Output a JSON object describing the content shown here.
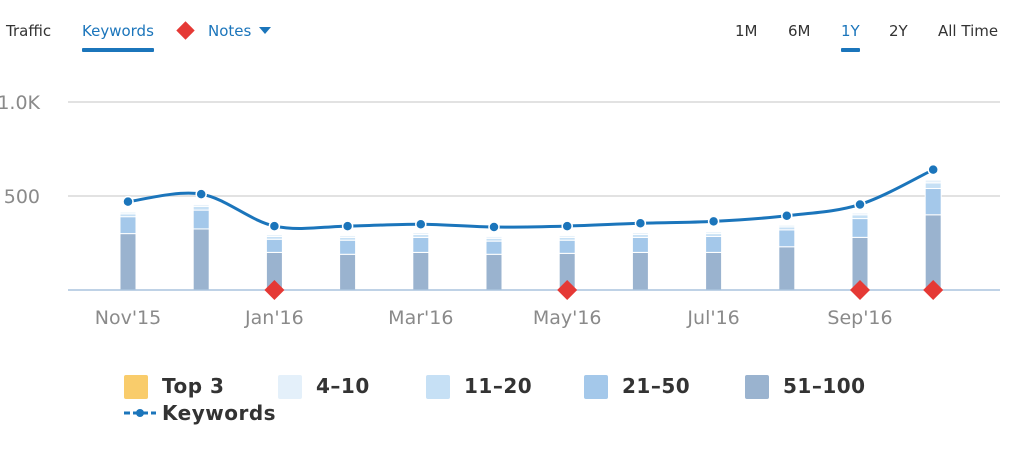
{
  "tabs": {
    "traffic": "Traffic",
    "keywords": "Keywords",
    "notes": "Notes"
  },
  "ranges": {
    "r1m": "1M",
    "r6m": "6M",
    "r1y": "1Y",
    "r2y": "2Y",
    "all": "All Time",
    "selected": "1Y"
  },
  "colors": {
    "accent": "#1b75bb",
    "note_marker": "#e53935",
    "top3": "#f9cc6b",
    "pos_4_10": "#e4f0fa",
    "pos_11_20": "#c6e0f5",
    "pos_21_50": "#a4c8ea",
    "pos_51_100": "#9ab3cf"
  },
  "legend": {
    "top3": "Top 3",
    "pos_4_10": "4–10",
    "pos_11_20": "11–20",
    "pos_21_50": "21–50",
    "pos_51_100": "51–100",
    "keywords": "Keywords"
  },
  "chart_data": {
    "type": "bar",
    "stacked": true,
    "x_tick_labels": [
      "Nov'15",
      "Jan'16",
      "Mar'16",
      "May'16",
      "Jul'16",
      "Sep'16"
    ],
    "y_tick_labels": [
      "1.0K",
      "500"
    ],
    "ylim": [
      0,
      1000
    ],
    "grid": true,
    "points": [
      {
        "top3": 0,
        "p4_10": 10,
        "p11_20": 15,
        "p21_50": 90,
        "p51_100": 300,
        "keywords": 470,
        "note": false
      },
      {
        "top3": 0,
        "p4_10": 10,
        "p11_20": 20,
        "p21_50": 100,
        "p51_100": 325,
        "keywords": 510,
        "note": false
      },
      {
        "top3": 0,
        "p4_10": 10,
        "p11_20": 15,
        "p21_50": 70,
        "p51_100": 200,
        "keywords": 340,
        "note": true
      },
      {
        "top3": 0,
        "p4_10": 10,
        "p11_20": 15,
        "p21_50": 75,
        "p51_100": 190,
        "keywords": 340,
        "note": false
      },
      {
        "top3": 0,
        "p4_10": 10,
        "p11_20": 15,
        "p21_50": 80,
        "p51_100": 200,
        "keywords": 350,
        "note": false
      },
      {
        "top3": 0,
        "p4_10": 10,
        "p11_20": 15,
        "p21_50": 70,
        "p51_100": 190,
        "keywords": 335,
        "note": false
      },
      {
        "top3": 0,
        "p4_10": 10,
        "p11_20": 15,
        "p21_50": 70,
        "p51_100": 195,
        "keywords": 340,
        "note": true
      },
      {
        "top3": 0,
        "p4_10": 10,
        "p11_20": 15,
        "p21_50": 80,
        "p51_100": 200,
        "keywords": 355,
        "note": false
      },
      {
        "top3": 0,
        "p4_10": 10,
        "p11_20": 15,
        "p21_50": 85,
        "p51_100": 200,
        "keywords": 365,
        "note": false
      },
      {
        "top3": 0,
        "p4_10": 10,
        "p11_20": 15,
        "p21_50": 90,
        "p51_100": 230,
        "keywords": 395,
        "note": false
      },
      {
        "top3": 0,
        "p4_10": 10,
        "p11_20": 20,
        "p21_50": 100,
        "p51_100": 280,
        "keywords": 455,
        "note": true
      },
      {
        "top3": 0,
        "p4_10": 15,
        "p11_20": 30,
        "p21_50": 140,
        "p51_100": 400,
        "keywords": 640,
        "note": true
      }
    ]
  }
}
